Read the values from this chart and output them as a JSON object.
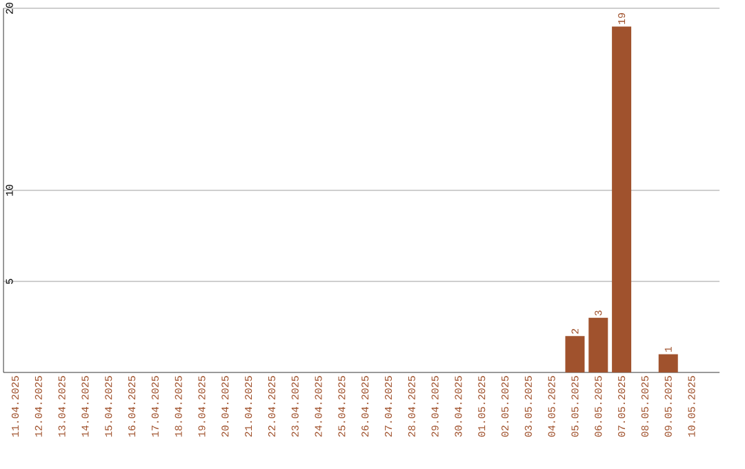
{
  "chart_data": {
    "type": "bar",
    "categories": [
      "11.04.2025",
      "12.04.2025",
      "13.04.2025",
      "14.04.2025",
      "15.04.2025",
      "16.04.2025",
      "17.04.2025",
      "18.04.2025",
      "19.04.2025",
      "20.04.2025",
      "21.04.2025",
      "22.04.2025",
      "23.04.2025",
      "24.04.2025",
      "25.04.2025",
      "26.04.2025",
      "27.04.2025",
      "28.04.2025",
      "29.04.2025",
      "30.04.2025",
      "01.05.2025",
      "02.05.2025",
      "03.05.2025",
      "04.05.2025",
      "05.05.2025",
      "06.05.2025",
      "07.05.2025",
      "08.05.2025",
      "09.05.2025",
      "10.05.2025"
    ],
    "values": [
      0,
      0,
      0,
      0,
      0,
      0,
      0,
      0,
      0,
      0,
      0,
      0,
      0,
      0,
      0,
      0,
      0,
      0,
      0,
      0,
      0,
      0,
      0,
      0,
      2,
      3,
      19,
      0,
      1,
      0
    ],
    "value_labels": [
      null,
      null,
      null,
      null,
      null,
      null,
      null,
      null,
      null,
      null,
      null,
      null,
      null,
      null,
      null,
      null,
      null,
      null,
      null,
      null,
      null,
      null,
      null,
      null,
      "2",
      "3",
      "19",
      null,
      "1",
      null
    ],
    "color": "#a0522d",
    "ylim": [
      0,
      20
    ],
    "yticks": [
      5,
      10,
      20
    ],
    "grid": "y"
  }
}
